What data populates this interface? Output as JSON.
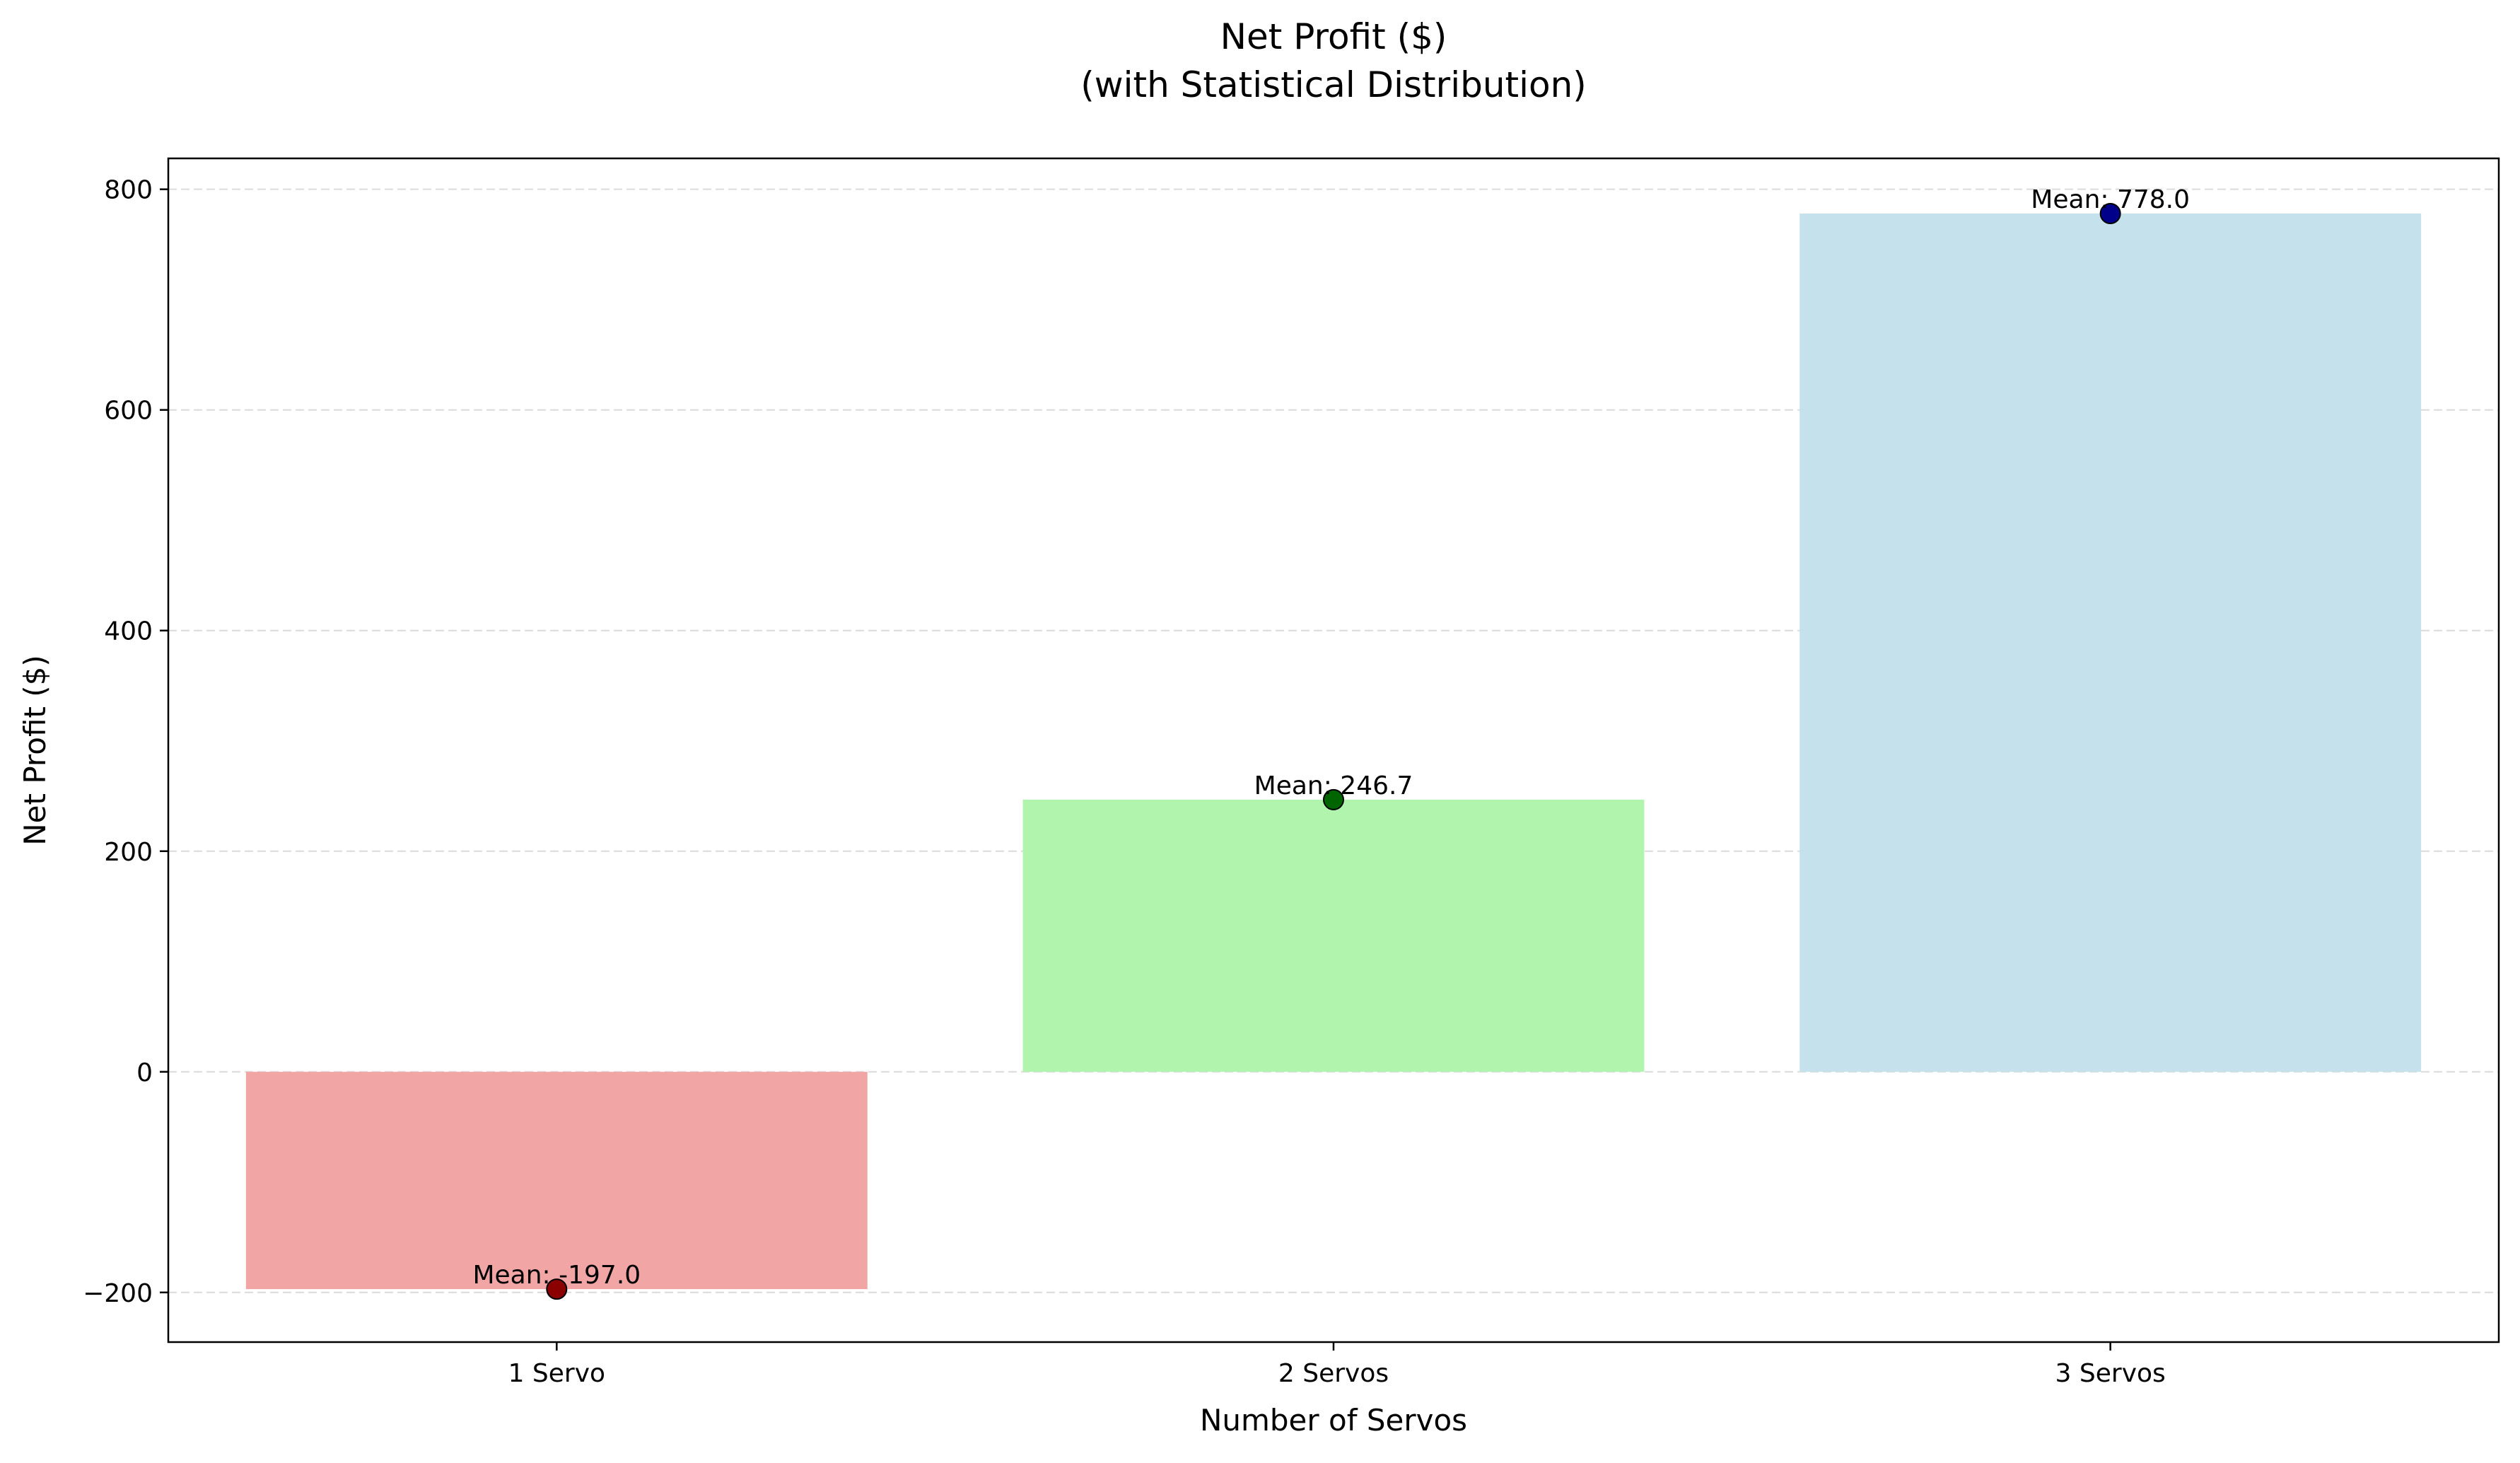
{
  "chart_data": {
    "type": "bar",
    "title": "Net Profit ($)",
    "subtitle": "(with Statistical Distribution)",
    "xlabel": "Number of Servos",
    "ylabel": "Net Profit ($)",
    "categories": [
      "1 Servo",
      "2 Servos",
      "3 Servos"
    ],
    "values": [
      -197.0,
      246.7,
      778.0
    ],
    "mean_labels": [
      "Mean: -197.0",
      "Mean: 246.7",
      "Mean: 778.0"
    ],
    "bar_colors": [
      "#f2a5a5",
      "#b1f4ae",
      "#c5e2ec"
    ],
    "point_colors": [
      "#8b0000",
      "#006400",
      "#00008b"
    ],
    "ylim": [
      -245,
      828
    ],
    "yticks": [
      -200,
      0,
      200,
      400,
      600,
      800
    ],
    "ytick_labels": [
      "−200",
      "0",
      "200",
      "400",
      "600",
      "800"
    ],
    "grid": true,
    "grid_axis": "y",
    "legend": "none"
  }
}
